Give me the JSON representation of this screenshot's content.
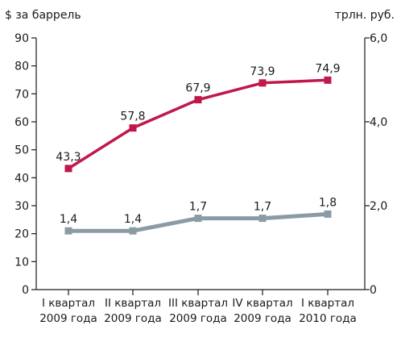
{
  "chart_data": {
    "type": "line",
    "categories": [
      [
        "I квартал",
        "2009 года"
      ],
      [
        "II квартал",
        "2009 года"
      ],
      [
        "III квартал",
        "2009 года"
      ],
      [
        "IV квартал",
        "2009 года"
      ],
      [
        "I квартал",
        "2010 года"
      ]
    ],
    "left_axis": {
      "label": "$ за баррель",
      "ylim": [
        0,
        90
      ],
      "ticks": [
        "0",
        "10",
        "20",
        "30",
        "40",
        "50",
        "60",
        "70",
        "80",
        "90"
      ]
    },
    "right_axis": {
      "label": "трлн. руб.",
      "ylim": [
        0,
        6
      ],
      "ticks": [
        "0",
        "2,0",
        "4,0",
        "6,0"
      ]
    },
    "series": [
      {
        "axis": "left",
        "values": [
          43.3,
          57.8,
          67.9,
          73.9,
          74.9
        ],
        "labels": [
          "43,3",
          "57,8",
          "67,9",
          "73,9",
          "74,9"
        ],
        "color": "#c0184a"
      },
      {
        "axis": "right",
        "values": [
          1.4,
          1.4,
          1.7,
          1.7,
          1.8
        ],
        "labels": [
          "1,4",
          "1,4",
          "1,7",
          "1,7",
          "1,8"
        ],
        "color": "#8a9ba6"
      }
    ],
    "grid": false,
    "legend": "none"
  }
}
